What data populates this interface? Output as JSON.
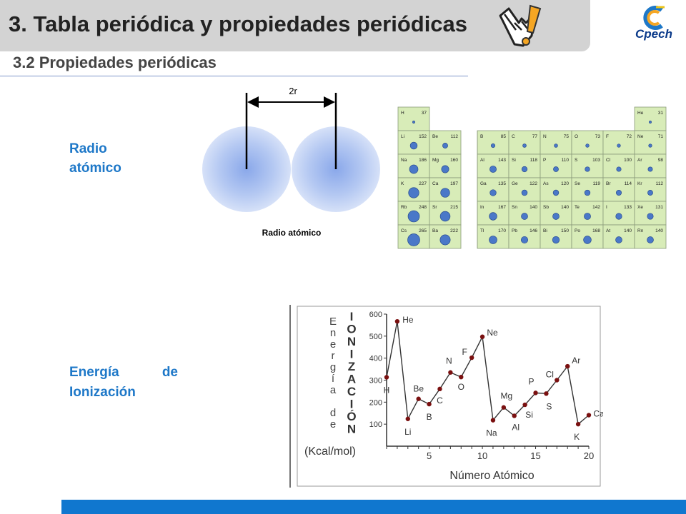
{
  "header": {
    "title": "3. Tabla periódica y propiedades periódicas",
    "subtitle": "3.2 Propiedades periódicas",
    "logo_text": "Cpech"
  },
  "labels": {
    "radio": "Radio atómico",
    "energia_line1_a": "Energía",
    "energia_line1_b": "de",
    "energia_line2": "Ionización"
  },
  "radius_diagram": {
    "top_label": "2r",
    "caption": "Radio atómico"
  },
  "periodic_table": {
    "s_block": [
      [
        {
          "sym": "H",
          "r": 37
        }
      ],
      [
        {
          "sym": "Li",
          "r": 152
        },
        {
          "sym": "Be",
          "r": 112
        }
      ],
      [
        {
          "sym": "Na",
          "r": 186
        },
        {
          "sym": "Mg",
          "r": 160
        }
      ],
      [
        {
          "sym": "K",
          "r": 227
        },
        {
          "sym": "Ca",
          "r": 197
        }
      ],
      [
        {
          "sym": "Rb",
          "r": 248
        },
        {
          "sym": "Sr",
          "r": 215
        }
      ],
      [
        {
          "sym": "Cs",
          "r": 265
        },
        {
          "sym": "Ba",
          "r": 222
        }
      ]
    ],
    "p_block": [
      [
        null,
        null,
        null,
        null,
        null,
        {
          "sym": "He",
          "r": 31
        }
      ],
      [
        {
          "sym": "B",
          "r": 85
        },
        {
          "sym": "C",
          "r": 77
        },
        {
          "sym": "N",
          "r": 75
        },
        {
          "sym": "O",
          "r": 73
        },
        {
          "sym": "F",
          "r": 72
        },
        {
          "sym": "Ne",
          "r": 71
        }
      ],
      [
        {
          "sym": "Al",
          "r": 143
        },
        {
          "sym": "Si",
          "r": 118
        },
        {
          "sym": "P",
          "r": 110
        },
        {
          "sym": "S",
          "r": 103
        },
        {
          "sym": "Cl",
          "r": 100
        },
        {
          "sym": "Ar",
          "r": 98
        }
      ],
      [
        {
          "sym": "Ga",
          "r": 135
        },
        {
          "sym": "Ge",
          "r": 122
        },
        {
          "sym": "As",
          "r": 120
        },
        {
          "sym": "Se",
          "r": 119
        },
        {
          "sym": "Br",
          "r": 114
        },
        {
          "sym": "Kr",
          "r": 112
        }
      ],
      [
        {
          "sym": "In",
          "r": 167
        },
        {
          "sym": "Sn",
          "r": 140
        },
        {
          "sym": "Sb",
          "r": 140
        },
        {
          "sym": "Te",
          "r": 142
        },
        {
          "sym": "I",
          "r": 133
        },
        {
          "sym": "Xe",
          "r": 131
        }
      ],
      [
        {
          "sym": "Tl",
          "r": 170
        },
        {
          "sym": "Pb",
          "r": 146
        },
        {
          "sym": "Bi",
          "r": 150
        },
        {
          "sym": "Po",
          "r": 168
        },
        {
          "sym": "At",
          "r": 140
        },
        {
          "sym": "Rn",
          "r": 140
        }
      ]
    ]
  },
  "chart_data": {
    "type": "line",
    "title": "",
    "ylabel_left": "Energía de",
    "ylabel_right": "IONIZACIÓN",
    "yunit": "(Kcal/mol)",
    "xlabel": "Número Atómico",
    "ylim": [
      0,
      600
    ],
    "xlim": [
      1,
      20
    ],
    "y_ticks": [
      "100",
      "200",
      "300",
      "400",
      "500",
      "600"
    ],
    "x_ticks": [
      "5",
      "10",
      "15",
      "20"
    ],
    "points": [
      {
        "x": 1,
        "y": 313,
        "label": "H"
      },
      {
        "x": 2,
        "y": 567,
        "label": "He"
      },
      {
        "x": 3,
        "y": 124,
        "label": "Li"
      },
      {
        "x": 4,
        "y": 215,
        "label": "Be"
      },
      {
        "x": 5,
        "y": 191,
        "label": "B"
      },
      {
        "x": 6,
        "y": 260,
        "label": "C"
      },
      {
        "x": 7,
        "y": 335,
        "label": "N"
      },
      {
        "x": 8,
        "y": 314,
        "label": "O"
      },
      {
        "x": 9,
        "y": 402,
        "label": "F"
      },
      {
        "x": 10,
        "y": 497,
        "label": "Ne"
      },
      {
        "x": 11,
        "y": 118,
        "label": "Na"
      },
      {
        "x": 12,
        "y": 176,
        "label": "Mg"
      },
      {
        "x": 13,
        "y": 138,
        "label": "Al"
      },
      {
        "x": 14,
        "y": 188,
        "label": "Si"
      },
      {
        "x": 15,
        "y": 242,
        "label": "P"
      },
      {
        "x": 16,
        "y": 239,
        "label": "S"
      },
      {
        "x": 17,
        "y": 300,
        "label": "Cl"
      },
      {
        "x": 18,
        "y": 363,
        "label": "Ar"
      },
      {
        "x": 19,
        "y": 100,
        "label": "K"
      },
      {
        "x": 20,
        "y": 141,
        "label": "Ca"
      }
    ]
  }
}
